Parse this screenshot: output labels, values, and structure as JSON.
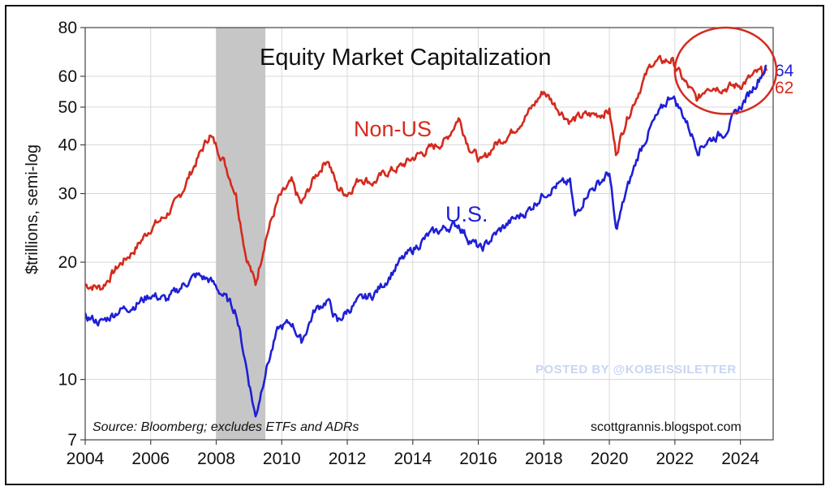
{
  "chart_data": {
    "type": "line",
    "title": "Equity Market Capitalization",
    "ylabel": "$trillions, semi-log",
    "xlabel": "",
    "y_scale": "log",
    "ylim": [
      7,
      80
    ],
    "xlim": [
      2004,
      2025
    ],
    "y_ticks": [
      7,
      10,
      20,
      30,
      40,
      50,
      60,
      80
    ],
    "x_ticks": [
      2004,
      2006,
      2008,
      2010,
      2012,
      2014,
      2016,
      2018,
      2020,
      2022,
      2024
    ],
    "grid": true,
    "recession_band": [
      2008.0,
      2009.5
    ],
    "series": [
      {
        "name": "Non-US",
        "label": "Non-US",
        "color": "#d42a1e",
        "end_value_label": "62",
        "points": [
          [
            2004.0,
            17.5
          ],
          [
            2004.5,
            17.2
          ],
          [
            2005.0,
            19.5
          ],
          [
            2005.5,
            21.5
          ],
          [
            2006.0,
            24.5
          ],
          [
            2006.4,
            26.0
          ],
          [
            2006.8,
            28.5
          ],
          [
            2007.3,
            35.0
          ],
          [
            2007.8,
            42.5
          ],
          [
            2008.2,
            37.0
          ],
          [
            2008.6,
            30.0
          ],
          [
            2008.9,
            21.0
          ],
          [
            2009.2,
            17.5
          ],
          [
            2009.5,
            23.0
          ],
          [
            2009.9,
            29.0
          ],
          [
            2010.3,
            32.0
          ],
          [
            2010.6,
            28.0
          ],
          [
            2011.0,
            33.0
          ],
          [
            2011.4,
            37.0
          ],
          [
            2011.7,
            31.0
          ],
          [
            2012.0,
            30.0
          ],
          [
            2012.4,
            33.0
          ],
          [
            2012.8,
            32.0
          ],
          [
            2013.2,
            34.0
          ],
          [
            2013.6,
            35.0
          ],
          [
            2014.0,
            37.0
          ],
          [
            2014.5,
            39.0
          ],
          [
            2015.0,
            41.0
          ],
          [
            2015.4,
            47.0
          ],
          [
            2015.7,
            40.0
          ],
          [
            2016.1,
            36.0
          ],
          [
            2016.5,
            40.0
          ],
          [
            2017.0,
            43.0
          ],
          [
            2017.5,
            48.0
          ],
          [
            2018.0,
            55.0
          ],
          [
            2018.4,
            50.0
          ],
          [
            2018.8,
            46.0
          ],
          [
            2019.2,
            47.5
          ],
          [
            2019.7,
            48.0
          ],
          [
            2020.0,
            49.0
          ],
          [
            2020.2,
            38.0
          ],
          [
            2020.5,
            46.0
          ],
          [
            2020.9,
            55.0
          ],
          [
            2021.3,
            65.0
          ],
          [
            2021.9,
            66.0
          ],
          [
            2022.3,
            58.0
          ],
          [
            2022.7,
            52.0
          ],
          [
            2023.0,
            57.0
          ],
          [
            2023.5,
            56.0
          ],
          [
            2024.0,
            57.0
          ],
          [
            2024.5,
            61.0
          ],
          [
            2024.8,
            62.0
          ]
        ]
      },
      {
        "name": "U.S.",
        "label": "U.S.",
        "color": "#1f1fd6",
        "end_value_label": "64",
        "points": [
          [
            2004.0,
            14.5
          ],
          [
            2004.5,
            14.0
          ],
          [
            2005.0,
            15.0
          ],
          [
            2005.5,
            15.5
          ],
          [
            2006.0,
            16.5
          ],
          [
            2006.5,
            16.0
          ],
          [
            2007.0,
            17.5
          ],
          [
            2007.4,
            18.5
          ],
          [
            2007.8,
            18.0
          ],
          [
            2008.2,
            16.5
          ],
          [
            2008.6,
            15.0
          ],
          [
            2008.9,
            11.0
          ],
          [
            2009.2,
            8.0
          ],
          [
            2009.5,
            10.5
          ],
          [
            2009.9,
            13.5
          ],
          [
            2010.3,
            14.0
          ],
          [
            2010.6,
            12.5
          ],
          [
            2011.0,
            15.0
          ],
          [
            2011.4,
            16.0
          ],
          [
            2011.7,
            14.0
          ],
          [
            2012.0,
            15.0
          ],
          [
            2012.4,
            16.0
          ],
          [
            2012.8,
            16.5
          ],
          [
            2013.2,
            18.0
          ],
          [
            2013.6,
            20.0
          ],
          [
            2014.0,
            21.5
          ],
          [
            2014.5,
            23.5
          ],
          [
            2015.0,
            24.5
          ],
          [
            2015.4,
            25.0
          ],
          [
            2015.7,
            23.0
          ],
          [
            2016.1,
            21.5
          ],
          [
            2016.5,
            23.5
          ],
          [
            2017.0,
            25.5
          ],
          [
            2017.5,
            27.0
          ],
          [
            2018.0,
            30.0
          ],
          [
            2018.4,
            31.5
          ],
          [
            2018.8,
            32.0
          ],
          [
            2018.95,
            26.0
          ],
          [
            2019.3,
            30.0
          ],
          [
            2019.7,
            32.0
          ],
          [
            2020.0,
            34.0
          ],
          [
            2020.2,
            24.0
          ],
          [
            2020.5,
            30.0
          ],
          [
            2020.9,
            38.0
          ],
          [
            2021.3,
            45.0
          ],
          [
            2021.9,
            54.0
          ],
          [
            2022.3,
            47.0
          ],
          [
            2022.7,
            39.0
          ],
          [
            2023.0,
            41.0
          ],
          [
            2023.5,
            43.0
          ],
          [
            2024.0,
            50.0
          ],
          [
            2024.5,
            58.0
          ],
          [
            2024.8,
            64.0
          ]
        ]
      }
    ],
    "annotation": {
      "type": "circle",
      "description": "highlight around 2022-2025 region",
      "center": [
        2023.55,
        62
      ],
      "radius_years": 1.55,
      "color": "#d42a1e"
    },
    "source": "Source: Bloomberg; excludes ETFs and ADRs",
    "credit": "scottgrannis.blogspot.com",
    "watermark": "POSTED BY @KOBEISSILETTER"
  }
}
